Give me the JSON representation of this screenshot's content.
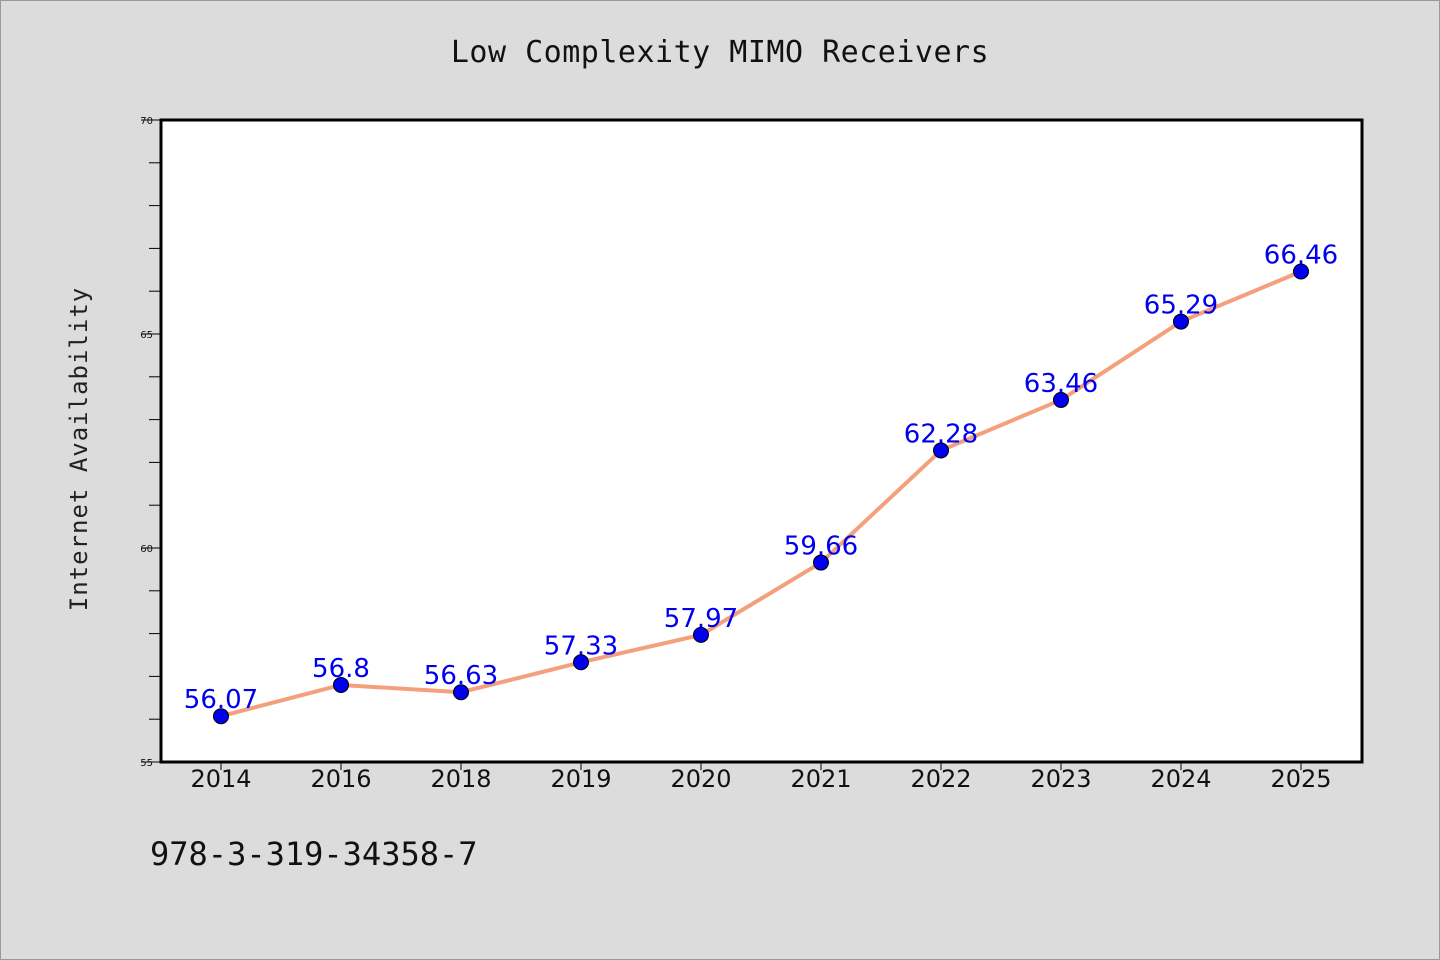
{
  "chart_data": {
    "type": "line",
    "title": "Low Complexity MIMO Receivers",
    "xlabel": "",
    "ylabel": "Internet Availability",
    "categories": [
      "2014",
      "2016",
      "2018",
      "2019",
      "2020",
      "2021",
      "2022",
      "2023",
      "2024",
      "2025"
    ],
    "series": [
      {
        "values": [
          56.07,
          56.8,
          56.63,
          57.33,
          57.97,
          59.66,
          62.28,
          63.46,
          65.29,
          66.46
        ],
        "data_labels": [
          "56.07",
          "56.8",
          "56.63",
          "57.33",
          "57.97",
          "59.66",
          "62.28",
          "63.46",
          "65.29",
          "66.46"
        ]
      }
    ],
    "ylim": [
      55,
      70
    ],
    "y_ticks": [
      "55",
      "60",
      "65",
      "70"
    ],
    "y_minor_step": 1,
    "grid": false,
    "legend": "none",
    "colors": {
      "line": "#f4a07c",
      "marker": "#0000ee",
      "data_label": "#0000ee",
      "plot_background": "#ffffff",
      "page_background": "#dcdcdc"
    }
  },
  "footer": {
    "isbn": "978-3-319-34358-7"
  }
}
